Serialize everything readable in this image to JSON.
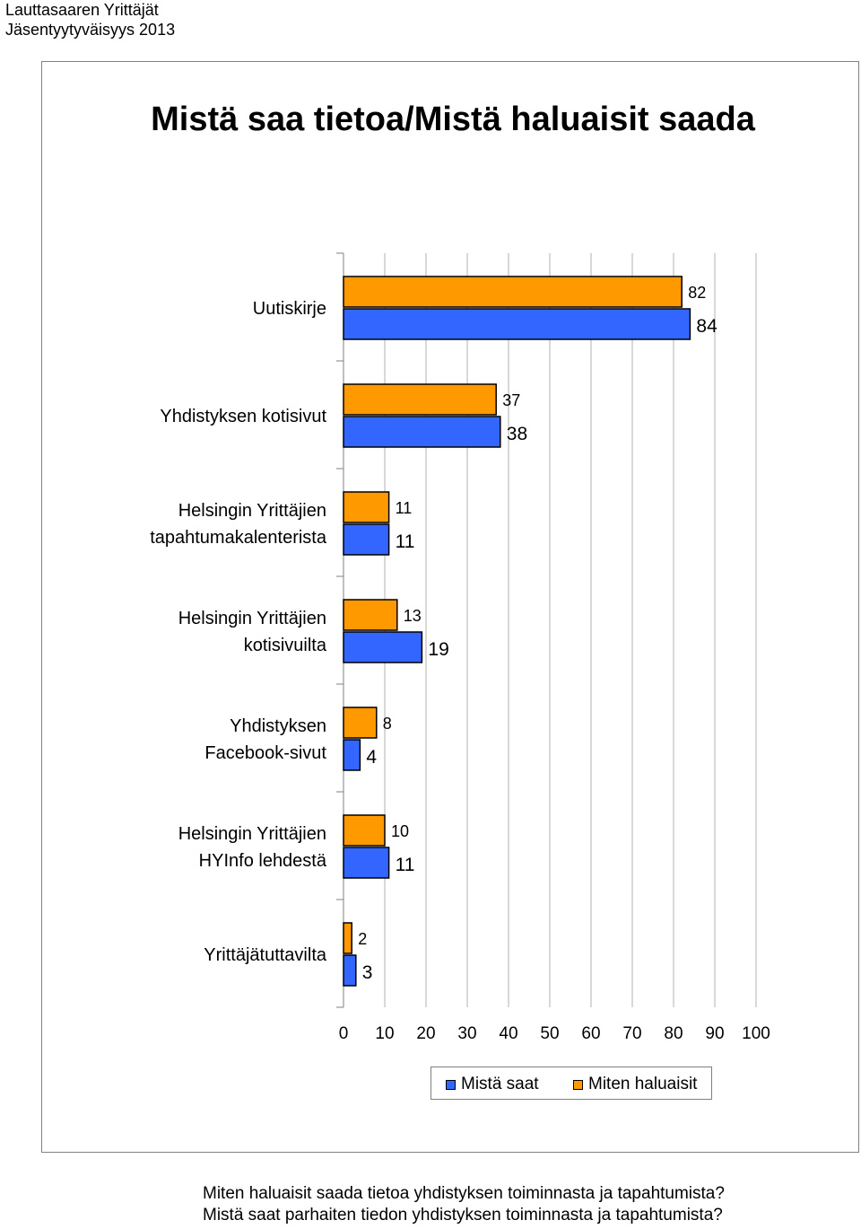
{
  "header": {
    "line1": "Lauttasaaren Yrittäjät",
    "line2": "Jäsentyytyväisyys 2013"
  },
  "chart_data": {
    "type": "bar",
    "orientation": "horizontal",
    "title": "Mistä saa tietoa/Mistä haluaisit saada",
    "categories": [
      [
        "Uutiskirje"
      ],
      [
        "Yhdistyksen kotisivut"
      ],
      [
        "Helsingin Yrittäjien",
        "tapahtumakalenterista"
      ],
      [
        "Helsingin Yrittäjien",
        "kotisivuilta"
      ],
      [
        "Yhdistyksen",
        "Facebook-sivut"
      ],
      [
        "Helsingin Yrittäjien",
        "HYInfo lehdestä"
      ],
      [
        "Yrittäjätuttavilta"
      ]
    ],
    "series": [
      {
        "name": "Miten haluaisit",
        "color": "#FF9900",
        "values": [
          82,
          37,
          11,
          13,
          8,
          10,
          2
        ]
      },
      {
        "name": "Mistä saat",
        "color": "#3366FF",
        "values": [
          84,
          38,
          11,
          19,
          4,
          11,
          3
        ]
      }
    ],
    "xlim": [
      0,
      100
    ],
    "xticks": [
      0,
      10,
      20,
      30,
      40,
      50,
      60,
      70,
      80,
      90,
      100
    ],
    "grid": true,
    "legend_position": "bottom"
  },
  "legend": {
    "first": "Mistä saat",
    "second": "Miten haluaisit"
  },
  "footer": {
    "line1": "Miten haluaisit saada tietoa yhdistyksen toiminnasta ja tapahtumista?",
    "line2": "Mistä saat parhaiten tiedon yhdistyksen toiminnasta ja tapahtumista?"
  }
}
